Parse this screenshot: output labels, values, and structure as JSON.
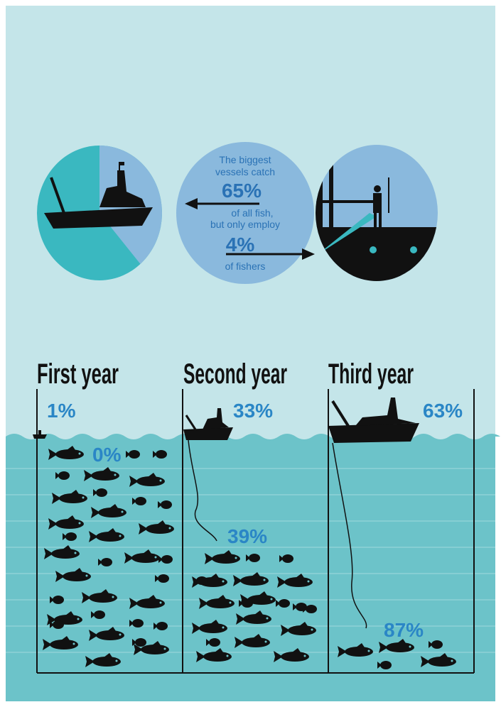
{
  "callout": {
    "line1": "The biggest",
    "line2": "vessels catch",
    "catch_share": "65%",
    "line3": "of all fish,",
    "line4": "but only employ",
    "employ_share": "4%",
    "line5": "of fishers"
  },
  "panels": [
    {
      "title": "First year",
      "vessel_share": "1%",
      "fish_share": "0%"
    },
    {
      "title": "Second year",
      "vessel_share": "33%",
      "fish_share": "39%"
    },
    {
      "title": "Third year",
      "vessel_share": "63%",
      "fish_share": "87%"
    }
  ]
}
